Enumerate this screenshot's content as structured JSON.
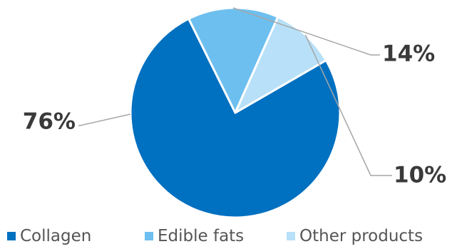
{
  "chart_data": {
    "type": "pie",
    "categories": [
      "Collagen",
      "Edible fats",
      "Other products"
    ],
    "values": [
      76,
      14,
      10
    ],
    "data_labels": [
      "76%",
      "14%",
      "10%"
    ],
    "colors": [
      "#0070c0",
      "#6dbfef",
      "#b8e0f8"
    ],
    "legend_position": "bottom",
    "title": "",
    "xlabel": "",
    "ylabel": ""
  }
}
